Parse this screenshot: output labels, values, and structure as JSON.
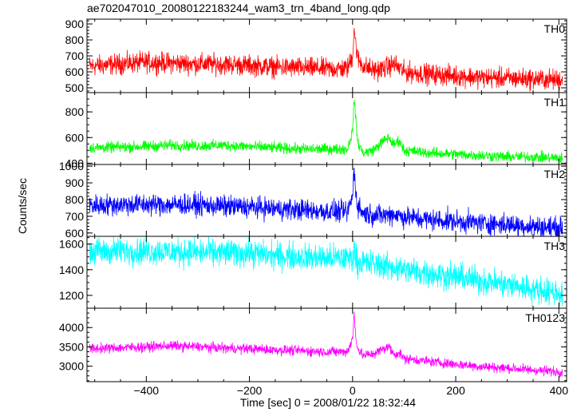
{
  "title": "ae702047010_20080122183244_wam3_trn_4band_long.qdp",
  "ylabel": "Counts/sec",
  "xlabel": "Time [sec] 0 = 2008/01/22 18:32:44",
  "colors": {
    "TH0": "#ff0000",
    "TH1": "#00ff00",
    "TH2": "#0000ff",
    "TH3": "#00ffff",
    "TH0123": "#ff00ff"
  },
  "chart_data": {
    "type": "line",
    "title": "ae702047010_20080122183244_wam3_trn_4band_long.qdp",
    "xlabel": "Time [sec] 0 = 2008/01/22 18:32:44",
    "ylabel": "Counts/sec",
    "xlim": [
      -515,
      415
    ],
    "xticks": [
      -400,
      -200,
      0,
      200,
      400
    ],
    "x_tick_labels": [
      "−400",
      "−200",
      "0",
      "200",
      "400"
    ],
    "grid": false,
    "panels": [
      {
        "name": "TH0",
        "color": "#ff0000",
        "ylim": [
          470,
          930
        ],
        "yticks": [
          500,
          600,
          700,
          800,
          900
        ],
        "noise": 45,
        "x": [
          -510,
          -450,
          -400,
          -350,
          -300,
          -250,
          -200,
          -150,
          -100,
          -50,
          -10,
          0,
          3,
          6,
          10,
          20,
          40,
          60,
          80,
          100,
          150,
          200,
          250,
          300,
          350,
          400
        ],
        "y": [
          635,
          650,
          660,
          655,
          650,
          648,
          640,
          630,
          625,
          620,
          620,
          700,
          880,
          780,
          680,
          640,
          610,
          620,
          650,
          600,
          585,
          575,
          565,
          560,
          555,
          550
        ]
      },
      {
        "name": "TH1",
        "color": "#00ff00",
        "ylim": [
          390,
          950
        ],
        "yticks": [
          400,
          600,
          800
        ],
        "noise": 30,
        "x": [
          -510,
          -450,
          -400,
          -350,
          -300,
          -250,
          -200,
          -150,
          -100,
          -50,
          -10,
          0,
          3,
          6,
          10,
          20,
          40,
          60,
          70,
          80,
          90,
          100,
          150,
          200,
          250,
          300,
          350,
          400
        ],
        "y": [
          520,
          525,
          530,
          540,
          535,
          540,
          530,
          520,
          510,
          510,
          510,
          650,
          920,
          750,
          560,
          480,
          500,
          575,
          600,
          540,
          580,
          500,
          480,
          470,
          460,
          450,
          450,
          440
        ]
      },
      {
        "name": "TH2",
        "color": "#0000ff",
        "ylim": [
          580,
          1010
        ],
        "yticks": [
          600,
          700,
          800,
          900,
          1000
        ],
        "noise": 45,
        "x": [
          -510,
          -450,
          -400,
          -350,
          -300,
          -250,
          -200,
          -150,
          -100,
          -50,
          -10,
          0,
          3,
          6,
          10,
          20,
          40,
          60,
          80,
          100,
          150,
          200,
          250,
          300,
          350,
          400
        ],
        "y": [
          765,
          770,
          770,
          770,
          768,
          760,
          755,
          745,
          738,
          730,
          725,
          820,
          990,
          850,
          760,
          720,
          710,
          705,
          715,
          695,
          680,
          670,
          660,
          650,
          640,
          630
        ]
      },
      {
        "name": "TH3",
        "color": "#00ffff",
        "ylim": [
          1100,
          1660
        ],
        "yticks": [
          1200,
          1400,
          1600
        ],
        "noise": 75,
        "x": [
          -510,
          -450,
          -400,
          -350,
          -300,
          -250,
          -200,
          -150,
          -100,
          -50,
          0,
          3,
          6,
          10,
          50,
          100,
          150,
          200,
          250,
          300,
          350,
          400
        ],
        "y": [
          1540,
          1545,
          1545,
          1540,
          1535,
          1530,
          1530,
          1510,
          1500,
          1490,
          1490,
          1560,
          1500,
          1460,
          1440,
          1400,
          1370,
          1345,
          1315,
          1285,
          1250,
          1215
        ]
      },
      {
        "name": "TH0123",
        "color": "#ff00ff",
        "ylim": [
          2600,
          4500
        ],
        "yticks": [
          3000,
          3500,
          4000
        ],
        "noise": 90,
        "x": [
          -510,
          -450,
          -400,
          -350,
          -300,
          -250,
          -200,
          -150,
          -100,
          -50,
          -10,
          0,
          3,
          6,
          10,
          20,
          40,
          60,
          70,
          80,
          90,
          100,
          150,
          200,
          250,
          300,
          350,
          400
        ],
        "y": [
          3450,
          3480,
          3500,
          3530,
          3500,
          3470,
          3450,
          3420,
          3400,
          3370,
          3380,
          3700,
          4350,
          3800,
          3450,
          3280,
          3320,
          3450,
          3520,
          3300,
          3350,
          3200,
          3120,
          3050,
          2990,
          2950,
          2900,
          2860
        ]
      }
    ]
  }
}
